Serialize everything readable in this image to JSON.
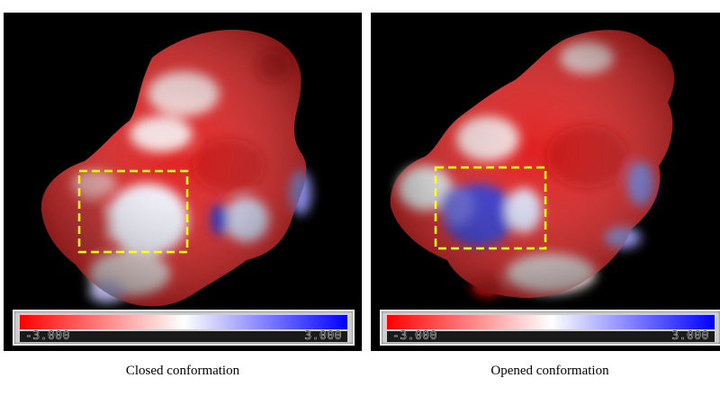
{
  "panels": [
    {
      "caption": "Closed conformation",
      "colorbar": {
        "min_label": "-3.000",
        "max_label": "3.000"
      }
    },
    {
      "caption": "Opened conformation",
      "colorbar": {
        "min_label": "-3.000",
        "max_label": "3.000"
      }
    }
  ],
  "colors": {
    "negative": "#ff0000",
    "neutral": "#ffffff",
    "positive": "#0000ff",
    "highlight_box": "#ffff00",
    "background": "#000000"
  }
}
